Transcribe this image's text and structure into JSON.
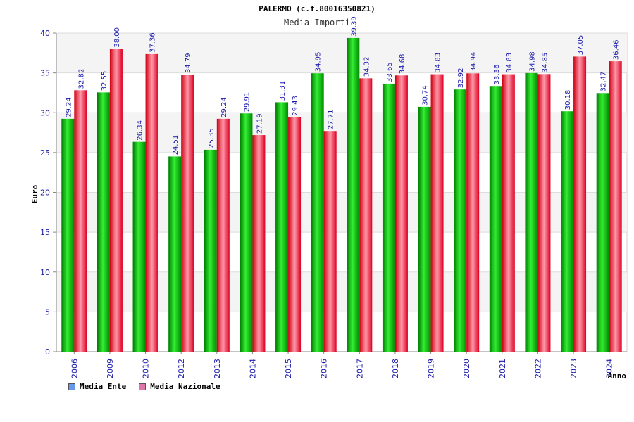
{
  "chart_data": {
    "type": "bar",
    "title": "PALERMO (c.f.80016350821)",
    "subtitle": "Media Importi",
    "xlabel": "Anno",
    "ylabel": "Euro",
    "ylim": [
      0,
      40
    ],
    "yticks": [
      0,
      5,
      10,
      15,
      20,
      25,
      30,
      35,
      40
    ],
    "grid": true,
    "legend_position": "bottom-left",
    "categories": [
      "2006",
      "2009",
      "2010",
      "2012",
      "2013",
      "2014",
      "2015",
      "2016",
      "2017",
      "2018",
      "2019",
      "2020",
      "2021",
      "2022",
      "2023",
      "2024"
    ],
    "series": [
      {
        "name": "Media Ente",
        "color": "#00aa00",
        "legend_color": "#6699ee",
        "values": [
          29.24,
          32.55,
          26.34,
          24.51,
          25.35,
          29.91,
          31.31,
          34.95,
          39.39,
          33.65,
          30.74,
          32.92,
          33.36,
          34.98,
          30.18,
          32.47
        ]
      },
      {
        "name": "Media Nazionale",
        "color": "#ee2233",
        "legend_color": "#dd77aa",
        "values": [
          32.82,
          38.0,
          37.36,
          34.79,
          29.24,
          27.19,
          29.43,
          27.71,
          34.32,
          34.68,
          34.83,
          34.94,
          34.83,
          34.85,
          37.05,
          36.46
        ]
      }
    ]
  }
}
